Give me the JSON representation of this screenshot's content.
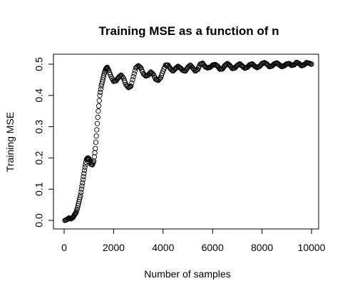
{
  "chart_data": {
    "type": "scatter",
    "title": "Training MSE as a function of n",
    "xlabel": "Number of samples",
    "ylabel": "Training MSE",
    "xlim": [
      0,
      10000
    ],
    "ylim": [
      0.0,
      0.5
    ],
    "x_ticks": [
      0,
      2000,
      4000,
      6000,
      8000,
      10000
    ],
    "y_ticks": [
      0.0,
      0.1,
      0.2,
      0.3,
      0.4,
      0.5
    ],
    "x_tick_labels": [
      "0",
      "2000",
      "4000",
      "6000",
      "8000",
      "10000"
    ],
    "y_tick_labels": [
      "0.0",
      "0.1",
      "0.2",
      "0.3",
      "0.4",
      "0.5"
    ],
    "grid": false,
    "marker": "open-circle",
    "colors": {
      "points": "#000000",
      "axes": "#000000",
      "background": "#ffffff"
    },
    "series": [
      {
        "points": [
          [
            30,
            0.0
          ],
          [
            120,
            0.003
          ],
          [
            200,
            0.008
          ],
          [
            280,
            0.005
          ],
          [
            360,
            0.01
          ],
          [
            420,
            0.018
          ],
          [
            480,
            0.025
          ],
          [
            540,
            0.04
          ],
          [
            600,
            0.06
          ],
          [
            660,
            0.08
          ],
          [
            720,
            0.11
          ],
          [
            780,
            0.14
          ],
          [
            840,
            0.17
          ],
          [
            900,
            0.195
          ],
          [
            960,
            0.2
          ],
          [
            1020,
            0.195
          ],
          [
            1080,
            0.18
          ],
          [
            1140,
            0.178
          ],
          [
            1200,
            0.19
          ],
          [
            1260,
            0.23
          ],
          [
            1320,
            0.29
          ],
          [
            1380,
            0.35
          ],
          [
            1440,
            0.4
          ],
          [
            1500,
            0.43
          ],
          [
            1560,
            0.45
          ],
          [
            1620,
            0.47
          ],
          [
            1680,
            0.485
          ],
          [
            1740,
            0.49
          ],
          [
            1800,
            0.48
          ],
          [
            1900,
            0.46
          ],
          [
            2000,
            0.445
          ],
          [
            2100,
            0.447
          ],
          [
            2200,
            0.458
          ],
          [
            2300,
            0.465
          ],
          [
            2400,
            0.455
          ],
          [
            2500,
            0.435
          ],
          [
            2600,
            0.425
          ],
          [
            2700,
            0.43
          ],
          [
            2800,
            0.46
          ],
          [
            2900,
            0.488
          ],
          [
            3000,
            0.495
          ],
          [
            3100,
            0.488
          ],
          [
            3200,
            0.47
          ],
          [
            3300,
            0.462
          ],
          [
            3400,
            0.465
          ],
          [
            3500,
            0.475
          ],
          [
            3600,
            0.468
          ],
          [
            3700,
            0.452
          ],
          [
            3800,
            0.448
          ],
          [
            3900,
            0.457
          ],
          [
            4000,
            0.478
          ],
          [
            4100,
            0.497
          ],
          [
            4200,
            0.497
          ],
          [
            4300,
            0.485
          ],
          [
            4400,
            0.478
          ],
          [
            4500,
            0.486
          ],
          [
            4600,
            0.493
          ],
          [
            4700,
            0.488
          ],
          [
            4800,
            0.48
          ],
          [
            4900,
            0.478
          ],
          [
            5000,
            0.49
          ],
          [
            5100,
            0.497
          ],
          [
            5200,
            0.488
          ],
          [
            5300,
            0.478
          ],
          [
            5400,
            0.483
          ],
          [
            5500,
            0.5
          ],
          [
            5600,
            0.503
          ],
          [
            5700,
            0.492
          ],
          [
            5800,
            0.488
          ],
          [
            5900,
            0.49
          ],
          [
            6000,
            0.497
          ],
          [
            6100,
            0.499
          ],
          [
            6200,
            0.494
          ],
          [
            6300,
            0.484
          ],
          [
            6400,
            0.485
          ],
          [
            6500,
            0.496
          ],
          [
            6600,
            0.502
          ],
          [
            6700,
            0.496
          ],
          [
            6800,
            0.486
          ],
          [
            6900,
            0.488
          ],
          [
            7000,
            0.496
          ],
          [
            7100,
            0.501
          ],
          [
            7200,
            0.494
          ],
          [
            7300,
            0.487
          ],
          [
            7400,
            0.49
          ],
          [
            7500,
            0.498
          ],
          [
            7600,
            0.501
          ],
          [
            7700,
            0.494
          ],
          [
            7800,
            0.489
          ],
          [
            7900,
            0.493
          ],
          [
            8000,
            0.502
          ],
          [
            8100,
            0.505
          ],
          [
            8200,
            0.5
          ],
          [
            8300,
            0.492
          ],
          [
            8400,
            0.494
          ],
          [
            8500,
            0.501
          ],
          [
            8600,
            0.504
          ],
          [
            8700,
            0.498
          ],
          [
            8800,
            0.492
          ],
          [
            8900,
            0.495
          ],
          [
            9000,
            0.501
          ],
          [
            9100,
            0.502
          ],
          [
            9200,
            0.496
          ],
          [
            9300,
            0.498
          ],
          [
            9400,
            0.506
          ],
          [
            9500,
            0.502
          ],
          [
            9600,
            0.495
          ],
          [
            9700,
            0.498
          ],
          [
            9800,
            0.505
          ],
          [
            9900,
            0.503
          ],
          [
            10000,
            0.5
          ]
        ]
      }
    ]
  }
}
